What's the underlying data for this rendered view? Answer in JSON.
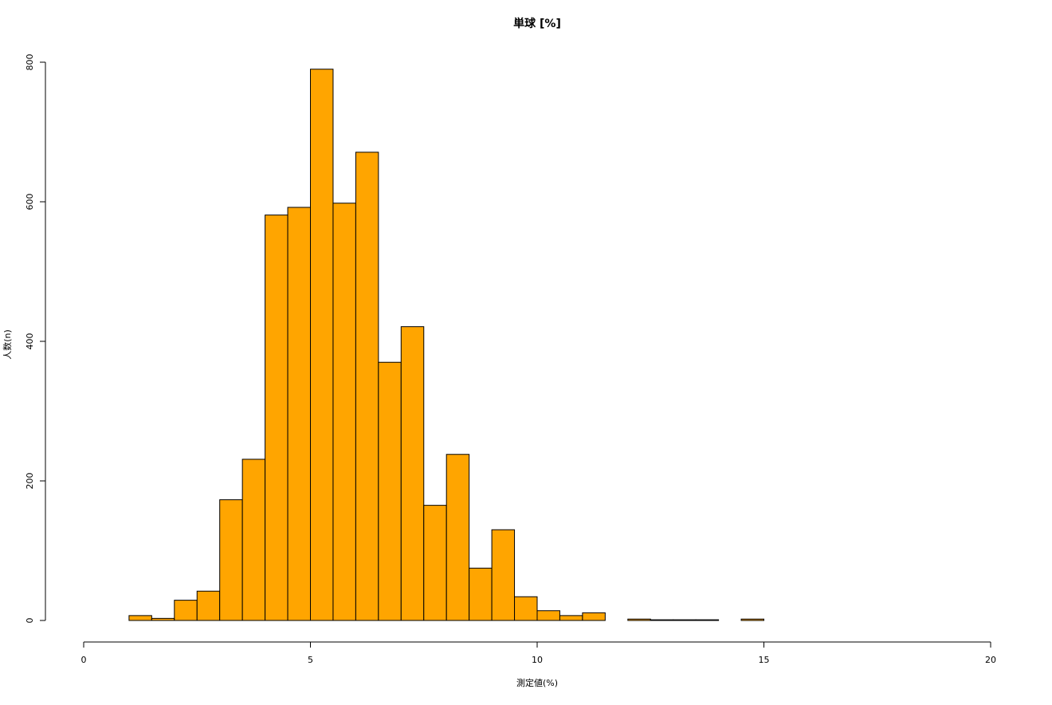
{
  "chart_data": {
    "type": "histogram",
    "title": "単球 [%]",
    "x_label": "測定値(%)",
    "y_label": "人数(n)",
    "bins": [
      1,
      1.5,
      2,
      2.5,
      3,
      3.5,
      4,
      4.5,
      5,
      5.5,
      6,
      6.5,
      7,
      7.5,
      8,
      8.5,
      9,
      9.5,
      10,
      10.5,
      11,
      11.5,
      12,
      12.5,
      13,
      13.5,
      14,
      14.5,
      15
    ],
    "counts": [
      7,
      3,
      29,
      42,
      173,
      231,
      581,
      592,
      790,
      598,
      671,
      370,
      421,
      165,
      238,
      75,
      130,
      34,
      14,
      7,
      11,
      0,
      2,
      1,
      1,
      1,
      0,
      2
    ],
    "color": "#ffa500",
    "xlim": [
      0,
      20
    ],
    "xticks": [
      0,
      5,
      10,
      15,
      20
    ],
    "ylim": [
      0,
      800
    ],
    "yticks": [
      0,
      200,
      400,
      600,
      800
    ]
  }
}
